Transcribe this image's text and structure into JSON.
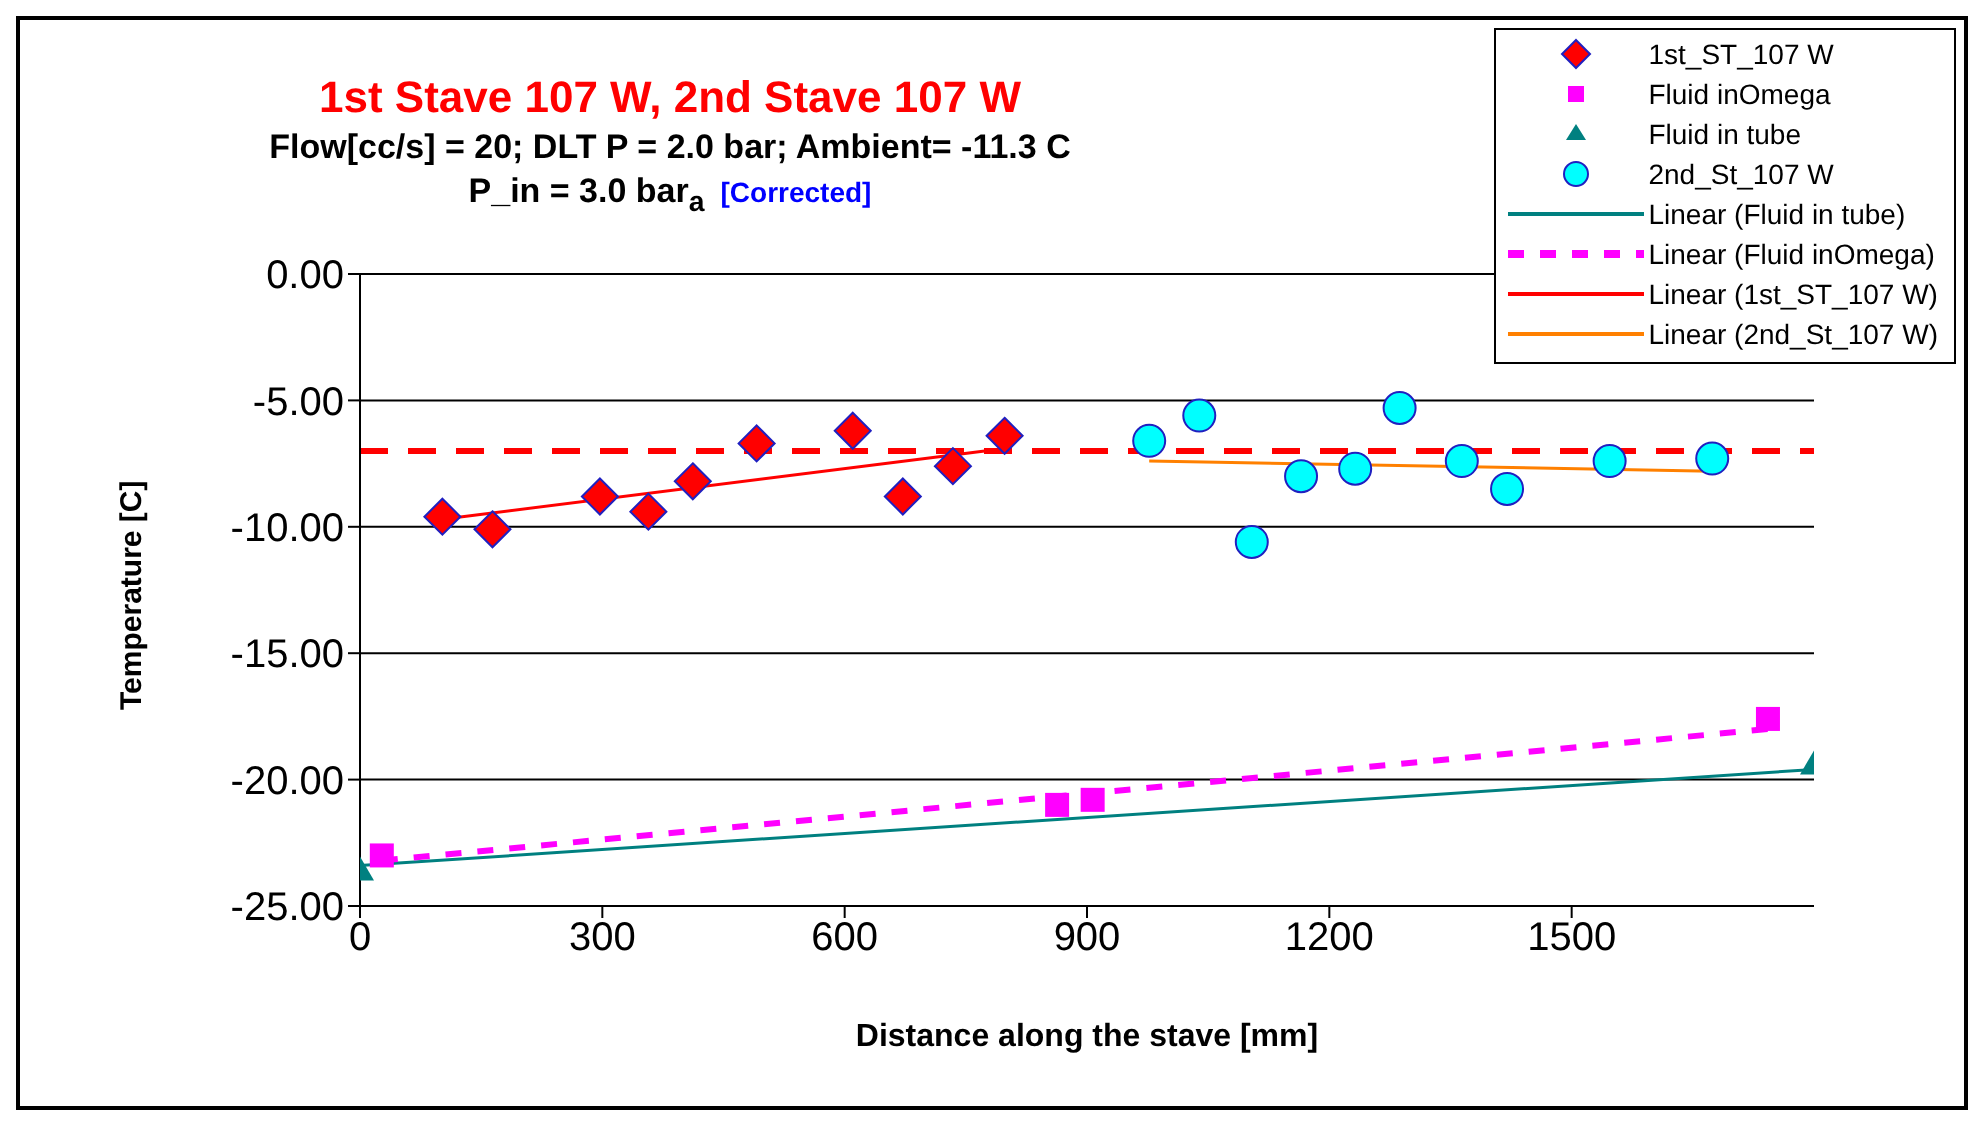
{
  "chart_data": {
    "type": "scatter",
    "title": "1st Stave 107 W, 2nd Stave 107 W",
    "subtitle": "Flow[cc/s] = 20; DLT P = 2.0 bar; Ambient= -11.3 C\nP_in = 3.0 bar$_{a}$",
    "annotations": [
      "[Corrected]"
    ],
    "xlabel": "Distance along the stave [mm]",
    "ylabel": "Temperature [C]",
    "xlim": [
      0,
      1800
    ],
    "xticks": [
      0,
      300,
      600,
      900,
      1200,
      1500
    ],
    "ylim": [
      -25,
      0
    ],
    "yticks": [
      {
        "value": 0,
        "label": "0.00"
      },
      {
        "value": -5,
        "label": "-5.00"
      },
      {
        "value": -10,
        "label": "-10.00"
      },
      {
        "value": -15,
        "label": "-15.00"
      },
      {
        "value": -20,
        "label": "-20.00"
      },
      {
        "value": -25,
        "label": "-25.00"
      }
    ],
    "grid": "y",
    "legend": "top right",
    "ref_lines": [
      {
        "axis": "y",
        "value": -7,
        "color": "#ff0000",
        "line_style": "dashed"
      }
    ],
    "series": [
      {
        "name": "1st_ST_107 W",
        "type": "scatter",
        "marker": "diamond",
        "color": "#ff0000",
        "x": [
          102,
          164,
          297,
          357,
          412,
          491,
          610,
          672,
          734,
          798
        ],
        "values": [
          -9.6,
          -10.1,
          -8.8,
          -9.4,
          -8.2,
          -6.7,
          -6.2,
          -8.8,
          -7.6,
          -6.4
        ]
      },
      {
        "name": "Fluid inOmega",
        "type": "scatter",
        "marker": "square",
        "color": "#ff00ff",
        "x": [
          27,
          863,
          907,
          1743
        ],
        "values": [
          -23.0,
          -21.0,
          -20.8,
          -17.6
        ]
      },
      {
        "name": "Fluid in tube",
        "type": "scatter",
        "marker": "triangle",
        "color": "#008080",
        "x": [
          0,
          1800
        ],
        "values": [
          -23.6,
          -19.4
        ]
      },
      {
        "name": "2nd_St_107 W",
        "type": "scatter",
        "marker": "circle",
        "color": "#00ffff",
        "x": [
          977,
          1039,
          1104,
          1165,
          1232,
          1287,
          1364,
          1420,
          1547,
          1674
        ],
        "values": [
          -6.6,
          -5.6,
          -10.6,
          -8.0,
          -7.7,
          -5.3,
          -7.4,
          -8.5,
          -7.4,
          -7.3
        ]
      },
      {
        "name": "Linear (Fluid in tube)",
        "type": "line",
        "line_style": "solid",
        "color": "#008080",
        "x": [
          0,
          1800
        ],
        "values": [
          -23.4,
          -19.6
        ]
      },
      {
        "name": "Linear (Fluid inOmega)",
        "type": "line",
        "line_style": "dashed",
        "color": "#ff00ff",
        "x": [
          27,
          1743
        ],
        "values": [
          -23.2,
          -18.0
        ]
      },
      {
        "name": "Linear (1st_ST_107 W)",
        "type": "line",
        "line_style": "solid",
        "color": "#ff0000",
        "x": [
          102,
          798
        ],
        "values": [
          -9.7,
          -6.9
        ]
      },
      {
        "name": "Linear (2nd_St_107 W)",
        "type": "line",
        "line_style": "solid",
        "color": "#ff8000",
        "x": [
          977,
          1674
        ],
        "values": [
          -7.4,
          -7.8
        ]
      }
    ]
  }
}
